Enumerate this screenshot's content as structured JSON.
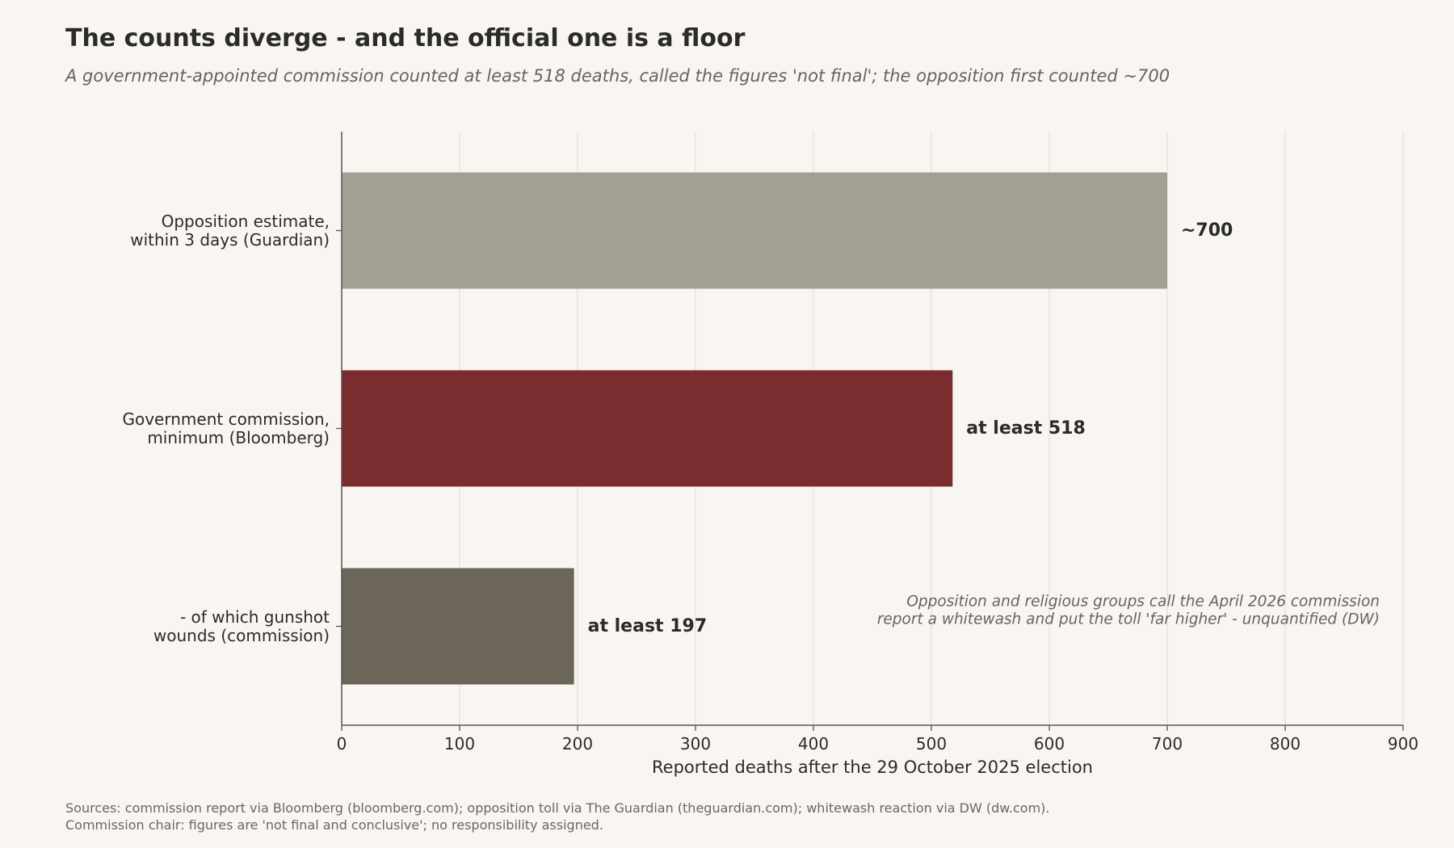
{
  "title": "The counts diverge - and the official one is a floor",
  "subtitle": "A government-appointed commission counted at least 518 deaths, called the figures 'not final'; the opposition first counted ~700",
  "sources": [
    "Sources: commission report via Bloomberg (bloomberg.com); opposition toll via The Guardian (theguardian.com); whitewash reaction via DW (dw.com).",
    "Commission chair: figures are 'not final and conclusive'; no responsibility assigned."
  ],
  "chart_data": {
    "type": "bar",
    "orientation": "horizontal",
    "categories": [
      [
        "Opposition estimate,",
        "within 3 days (Guardian)"
      ],
      [
        "Government commission,",
        "minimum (Bloomberg)"
      ],
      [
        "- of which gunshot",
        "wounds (commission)"
      ]
    ],
    "values": [
      700,
      518,
      197
    ],
    "value_labels": [
      "~700",
      "at least 518",
      "at least 197"
    ],
    "colors": [
      "#a29f93",
      "#7a2d2f",
      "#6c6559"
    ],
    "xlabel": "Reported deaths after the 29 October 2025 election",
    "ylabel": "",
    "xlim": [
      0,
      900
    ],
    "xticks": [
      0,
      100,
      200,
      300,
      400,
      500,
      600,
      700,
      800,
      900
    ],
    "grid": "vertical",
    "annotation": [
      "Opposition and religious groups call the April 2026 commission",
      "report a whitewash and put the toll 'far higher' - unquantified (DW)"
    ]
  },
  "colors": {
    "background": "#f9f6f2",
    "grid": "#e4e0da",
    "axis": "#555555",
    "text": "#2b2b2b",
    "muted": "#666460"
  }
}
